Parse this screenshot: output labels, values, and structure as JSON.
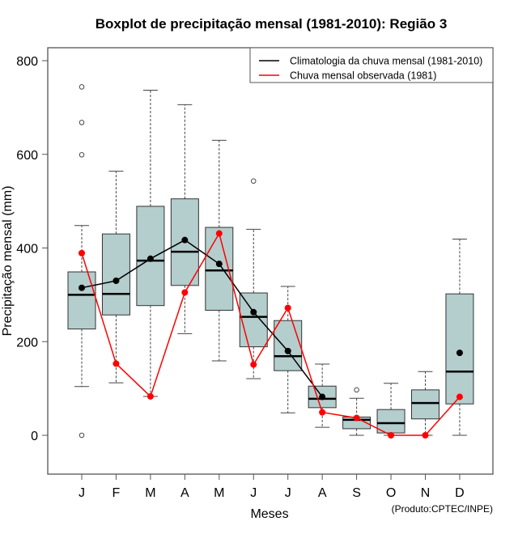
{
  "chart_data": {
    "type": "boxplot",
    "title": "Boxplot de precipitação mensal (1981-2010): Região 3",
    "xlabel": "Meses",
    "ylabel": "Precipitação mensal (mm)",
    "ylim": [
      -85,
      830
    ],
    "yticks": [
      0,
      200,
      400,
      600,
      800
    ],
    "ytick_labels": [
      "0",
      "200",
      "400",
      "600",
      "800"
    ],
    "categories": [
      "J",
      "F",
      "M",
      "A",
      "M",
      "J",
      "J",
      "A",
      "S",
      "O",
      "N",
      "D"
    ],
    "grid": false,
    "credit": "(Produto:CPTEC/INPE)",
    "legend": {
      "position": "top-right",
      "entries": [
        {
          "label": "Climatologia da chuva mensal (1981-2010)",
          "color": "#000000"
        },
        {
          "label": "Chuva mensal observada (1981)",
          "color": "#ff0000"
        }
      ]
    },
    "box_fill": "#b4cdcd",
    "boxes": [
      {
        "whisker_low": 104,
        "q1": 227,
        "median": 300,
        "q3": 349,
        "whisker_high": 448,
        "outliers": [
          0,
          599,
          668,
          744
        ]
      },
      {
        "whisker_low": 112,
        "q1": 257,
        "median": 302,
        "q3": 430,
        "whisker_high": 564,
        "outliers": []
      },
      {
        "whisker_low": 83,
        "q1": 277,
        "median": 373,
        "q3": 489,
        "whisker_high": 737,
        "outliers": []
      },
      {
        "whisker_low": 217,
        "q1": 320,
        "median": 392,
        "q3": 505,
        "whisker_high": 706,
        "outliers": []
      },
      {
        "whisker_low": 159,
        "q1": 267,
        "median": 352,
        "q3": 444,
        "whisker_high": 630,
        "outliers": []
      },
      {
        "whisker_low": 121,
        "q1": 189,
        "median": 253,
        "q3": 304,
        "whisker_high": 440,
        "outliers": [
          543
        ]
      },
      {
        "whisker_low": 48,
        "q1": 138,
        "median": 169,
        "q3": 245,
        "whisker_high": 318,
        "outliers": []
      },
      {
        "whisker_low": 17,
        "q1": 59,
        "median": 78,
        "q3": 105,
        "whisker_high": 152,
        "outliers": []
      },
      {
        "whisker_low": 0,
        "q1": 14,
        "median": 33,
        "q3": 39,
        "whisker_high": 79,
        "outliers": [
          97
        ]
      },
      {
        "whisker_low": 0,
        "q1": 5,
        "median": 26,
        "q3": 55,
        "whisker_high": 111,
        "outliers": []
      },
      {
        "whisker_low": 0,
        "q1": 35,
        "median": 69,
        "q3": 97,
        "whisker_high": 136,
        "outliers": []
      },
      {
        "whisker_low": 0,
        "q1": 67,
        "median": 136,
        "q3": 302,
        "whisker_high": 419,
        "outliers": []
      }
    ],
    "series": [
      {
        "name": "Climatologia da chuva mensal (1981-2010)",
        "color": "#000000",
        "values": [
          315,
          330,
          377,
          417,
          366,
          263,
          180,
          82,
          null,
          null,
          null,
          176
        ]
      },
      {
        "name": "Chuva mensal observada (1981)",
        "color": "#ff0000",
        "values": [
          389,
          153,
          83,
          305,
          431,
          151,
          272,
          49,
          37,
          0,
          0,
          82
        ]
      }
    ]
  }
}
